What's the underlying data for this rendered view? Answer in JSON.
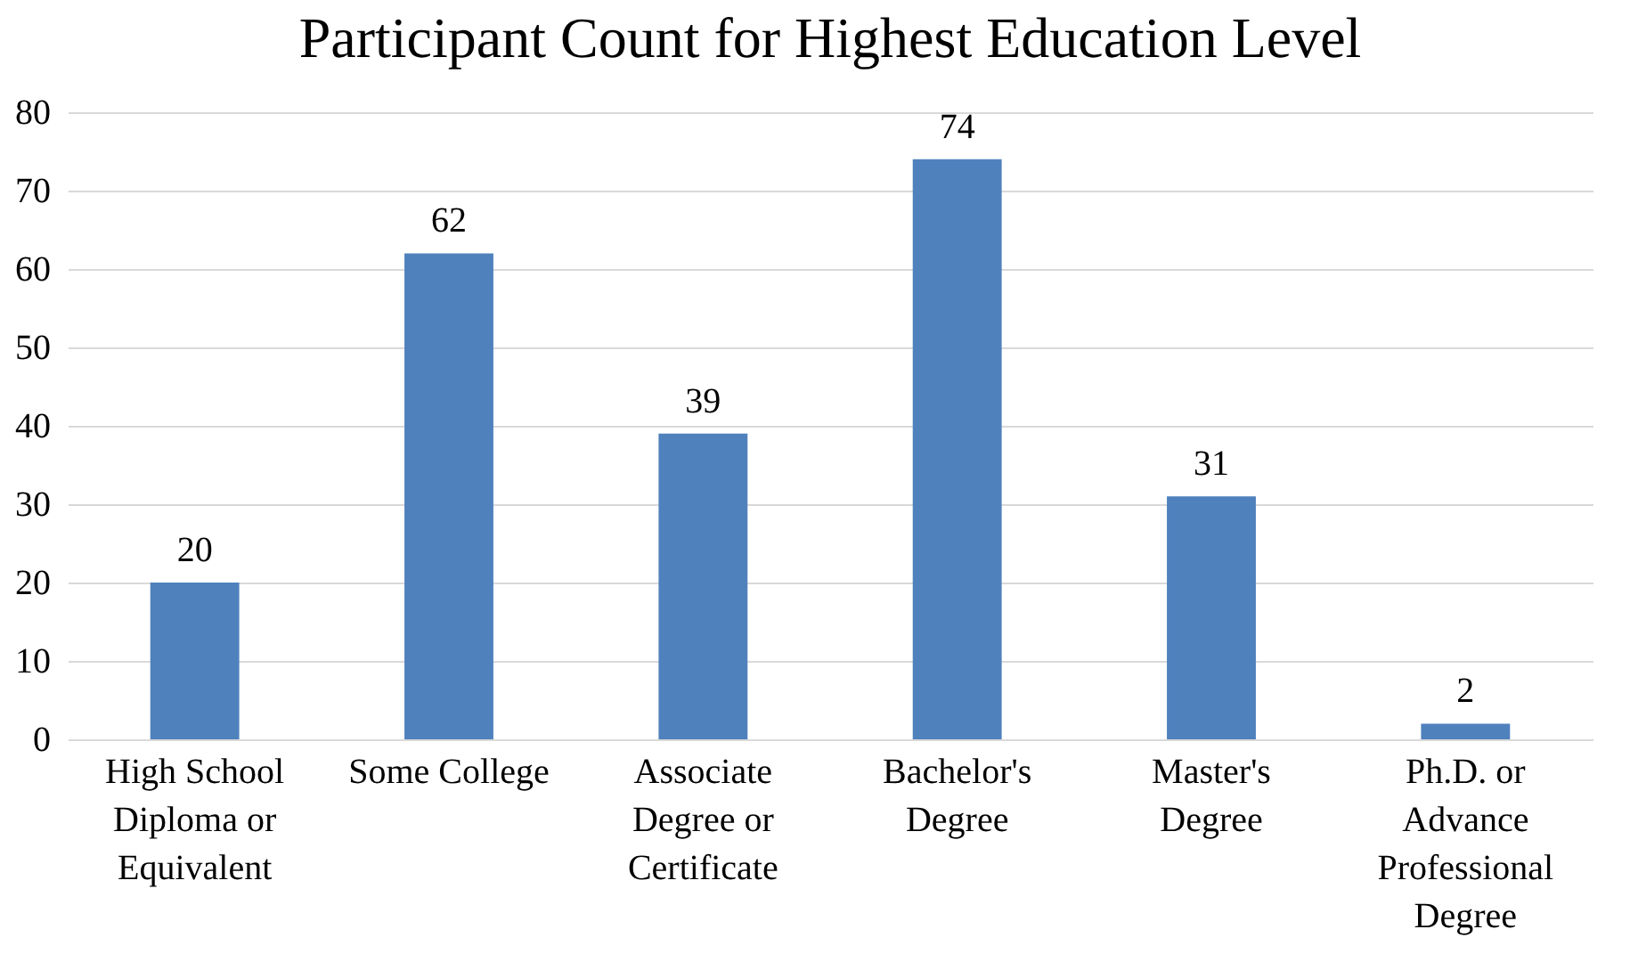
{
  "chart_data": {
    "type": "bar",
    "title": "Participant Count for Highest Education Level",
    "categories": [
      "High School Diploma or Equivalent",
      "Some College",
      "Associate Degree or Certificate",
      "Bachelor's Degree",
      "Master's Degree",
      "Ph.D. or Advance Professional Degree"
    ],
    "values": [
      20,
      62,
      39,
      74,
      31,
      2
    ],
    "color": "#4f81bd",
    "ylim": [
      0,
      80
    ],
    "yticks": [
      0,
      10,
      20,
      30,
      40,
      50,
      60,
      70,
      80
    ],
    "grid": "y",
    "data_labels": true
  }
}
